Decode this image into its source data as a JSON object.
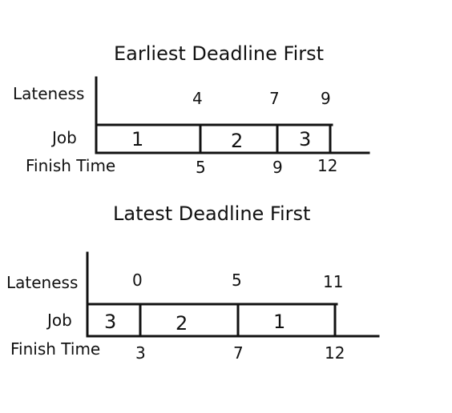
{
  "diagrams": [
    {
      "title": "Earliest Deadline First",
      "row_labels": {
        "lateness": "Lateness",
        "job": "Job",
        "finish": "Finish Time"
      },
      "jobs": [
        {
          "job": "1",
          "lateness": "",
          "finish": "5"
        },
        {
          "job": "2",
          "lateness": "4",
          "finish": "9"
        },
        {
          "job": "3",
          "lateness": "7",
          "finish": "12"
        }
      ],
      "extra_lateness": "9"
    },
    {
      "title": "Latest Deadline First",
      "row_labels": {
        "lateness": "Lateness",
        "job": "Job",
        "finish": "Finish Time"
      },
      "jobs": [
        {
          "job": "3",
          "lateness": "0",
          "finish": "3"
        },
        {
          "job": "2",
          "lateness": "5",
          "finish": "7"
        },
        {
          "job": "1",
          "lateness": "11",
          "finish": "12"
        }
      ]
    }
  ]
}
